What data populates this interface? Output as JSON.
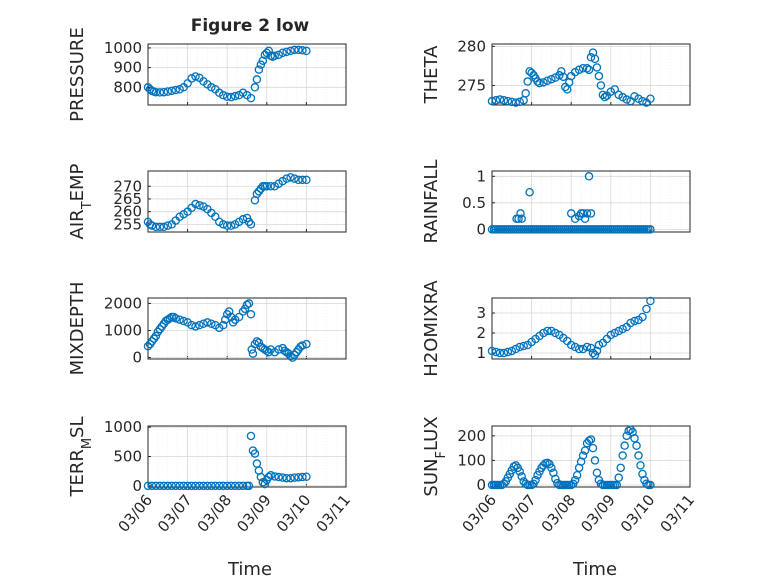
{
  "figure": {
    "title": "Figure 2 low",
    "xlabel": "Time",
    "marker_color": "#0072bd"
  },
  "chart_data": [
    {
      "type": "scatter",
      "ylabel": "PRESSURE",
      "xlim": [
        0,
        5
      ],
      "ylim": [
        710,
        1020
      ],
      "yticks": [
        800,
        900,
        1000
      ],
      "ytick_labels": [
        "800",
        "900",
        "1000"
      ],
      "xticks": [
        0,
        1,
        2,
        3,
        4,
        5
      ],
      "xtick_labels": [],
      "x": [
        0,
        0.05,
        0.1,
        0.15,
        0.2,
        0.3,
        0.4,
        0.5,
        0.6,
        0.7,
        0.8,
        0.9,
        1.0,
        1.1,
        1.2,
        1.3,
        1.4,
        1.5,
        1.6,
        1.7,
        1.8,
        1.9,
        2.0,
        2.1,
        2.2,
        2.3,
        2.4,
        2.5,
        2.6,
        2.7,
        2.75,
        2.8,
        2.85,
        2.9,
        2.95,
        3.0,
        3.05,
        3.1,
        3.15,
        3.2,
        3.3,
        3.4,
        3.5,
        3.6,
        3.7,
        3.8,
        3.9,
        4.0
      ],
      "y": [
        800,
        790,
        782,
        778,
        775,
        774,
        775,
        778,
        782,
        786,
        790,
        800,
        820,
        845,
        855,
        848,
        830,
        815,
        800,
        790,
        772,
        760,
        752,
        750,
        755,
        760,
        772,
        760,
        745,
        800,
        840,
        890,
        915,
        935,
        965,
        975,
        985,
        960,
        955,
        960,
        965,
        975,
        980,
        985,
        990,
        990,
        988,
        985
      ]
    },
    {
      "type": "scatter",
      "ylabel": "THETA",
      "xlim": [
        0,
        5
      ],
      "ylim": [
        272.5,
        280.3
      ],
      "yticks": [
        275,
        280
      ],
      "ytick_labels": [
        "275",
        "280"
      ],
      "xticks": [
        0,
        1,
        2,
        3,
        4,
        5
      ],
      "xtick_labels": [],
      "x": [
        0,
        0.1,
        0.2,
        0.3,
        0.4,
        0.5,
        0.6,
        0.7,
        0.8,
        0.85,
        0.9,
        0.95,
        1.0,
        1.05,
        1.1,
        1.15,
        1.2,
        1.3,
        1.4,
        1.5,
        1.6,
        1.7,
        1.75,
        1.8,
        1.85,
        1.9,
        1.95,
        2.0,
        2.1,
        2.2,
        2.3,
        2.4,
        2.45,
        2.5,
        2.55,
        2.6,
        2.65,
        2.7,
        2.75,
        2.8,
        2.85,
        2.9,
        3.0,
        3.1,
        3.2,
        3.3,
        3.4,
        3.5,
        3.6,
        3.7,
        3.8,
        3.9,
        4.0
      ],
      "y": [
        273.0,
        273.1,
        273.2,
        273.1,
        273.0,
        272.9,
        272.8,
        272.9,
        273.1,
        274.0,
        275.5,
        276.8,
        276.6,
        276.3,
        275.9,
        275.5,
        275.3,
        275.4,
        275.6,
        275.8,
        276.0,
        276.3,
        276.8,
        276.1,
        274.8,
        274.5,
        275.4,
        276.2,
        276.7,
        277.0,
        277.2,
        277.2,
        277.0,
        278.6,
        279.2,
        278.4,
        277.3,
        276.2,
        275.0,
        273.8,
        273.5,
        273.7,
        274.2,
        274.5,
        273.8,
        273.5,
        273.2,
        273.0,
        273.6,
        273.3,
        273.0,
        272.8,
        273.3
      ]
    },
    {
      "type": "scatter",
      "ylabel": "AIR_TEMP",
      "xlim": [
        0,
        5
      ],
      "ylim": [
        252,
        276
      ],
      "yticks": [
        255,
        260,
        265,
        270
      ],
      "ytick_labels": [
        "255",
        "260",
        "265",
        "270"
      ],
      "xticks": [
        0,
        1,
        2,
        3,
        4,
        5
      ],
      "xtick_labels": [],
      "x": [
        0,
        0.05,
        0.1,
        0.2,
        0.3,
        0.4,
        0.5,
        0.6,
        0.7,
        0.8,
        0.9,
        1.0,
        1.1,
        1.2,
        1.3,
        1.4,
        1.5,
        1.6,
        1.7,
        1.8,
        1.9,
        2.0,
        2.1,
        2.2,
        2.3,
        2.4,
        2.5,
        2.55,
        2.6,
        2.7,
        2.75,
        2.8,
        2.85,
        2.9,
        2.95,
        3.0,
        3.1,
        3.2,
        3.3,
        3.4,
        3.5,
        3.6,
        3.7,
        3.8,
        3.9,
        4.0
      ],
      "y": [
        256,
        255,
        254.5,
        254,
        254,
        254,
        254.5,
        255,
        256.5,
        258,
        259,
        260,
        261.5,
        263,
        262.5,
        262,
        261,
        259.5,
        258,
        256,
        255,
        254.5,
        254.5,
        255,
        256,
        257,
        257.5,
        256,
        255,
        264.5,
        267,
        268,
        269,
        270,
        270,
        270,
        270,
        270,
        271,
        272,
        273,
        273.5,
        273,
        272.5,
        272.5,
        272.5
      ]
    },
    {
      "type": "scatter",
      "ylabel": "RAINFALL",
      "xlim": [
        0,
        5
      ],
      "ylim": [
        -0.05,
        1.1
      ],
      "yticks": [
        0,
        0.5,
        1
      ],
      "ytick_labels": [
        "0",
        "0.5",
        "1"
      ],
      "xticks": [
        0,
        1,
        2,
        3,
        4,
        5
      ],
      "xtick_labels": [],
      "x": [
        0,
        0.05,
        0.1,
        0.15,
        0.2,
        0.25,
        0.3,
        0.35,
        0.4,
        0.45,
        0.5,
        0.55,
        0.6,
        0.65,
        0.7,
        0.75,
        0.8,
        0.85,
        0.9,
        0.95,
        1.0,
        1.05,
        1.1,
        1.15,
        1.2,
        1.25,
        1.3,
        1.35,
        1.4,
        1.45,
        1.5,
        1.55,
        1.6,
        1.65,
        1.7,
        1.75,
        1.8,
        1.85,
        1.9,
        1.95,
        2.0,
        2.05,
        2.1,
        2.15,
        2.2,
        2.25,
        2.3,
        2.35,
        2.4,
        2.45,
        2.5,
        2.55,
        2.6,
        2.65,
        2.7,
        2.75,
        2.8,
        2.85,
        2.9,
        2.95,
        3.0,
        3.05,
        3.1,
        3.15,
        3.2,
        3.25,
        3.3,
        3.35,
        3.4,
        3.45,
        3.5,
        3.55,
        3.6,
        3.65,
        3.7,
        3.75,
        3.8,
        3.85,
        3.9,
        3.95,
        4.0,
        0.62,
        0.67,
        0.72,
        0.75,
        0.95,
        2.0,
        2.1,
        2.2,
        2.25,
        2.3,
        2.35,
        2.4,
        2.45,
        2.5
      ],
      "y": [
        0,
        0,
        0,
        0,
        0,
        0,
        0,
        0,
        0,
        0,
        0,
        0,
        0,
        0,
        0,
        0,
        0,
        0,
        0,
        0,
        0,
        0,
        0,
        0,
        0,
        0,
        0,
        0,
        0,
        0,
        0,
        0,
        0,
        0,
        0,
        0,
        0,
        0,
        0,
        0,
        0,
        0,
        0,
        0,
        0,
        0,
        0,
        0,
        0,
        0,
        0,
        0,
        0,
        0,
        0,
        0,
        0,
        0,
        0,
        0,
        0,
        0,
        0,
        0,
        0,
        0,
        0,
        0,
        0,
        0,
        0,
        0,
        0,
        0,
        0,
        0,
        0,
        0,
        0,
        0,
        0,
        0.2,
        0.2,
        0.3,
        0.2,
        0.7,
        0.3,
        0.2,
        0.25,
        0.3,
        0.3,
        0.2,
        0.3,
        1.0,
        0.3
      ]
    },
    {
      "type": "scatter",
      "ylabel": "MIXDEPTH",
      "xlim": [
        0,
        5
      ],
      "ylim": [
        -50,
        2200
      ],
      "yticks": [
        0,
        1000,
        2000
      ],
      "ytick_labels": [
        "0",
        "1000",
        "2000"
      ],
      "xticks": [
        0,
        1,
        2,
        3,
        4,
        5
      ],
      "xtick_labels": [],
      "x": [
        0,
        0.05,
        0.1,
        0.15,
        0.2,
        0.25,
        0.3,
        0.35,
        0.4,
        0.45,
        0.5,
        0.55,
        0.6,
        0.65,
        0.7,
        0.8,
        0.9,
        1.0,
        1.1,
        1.2,
        1.3,
        1.4,
        1.5,
        1.6,
        1.7,
        1.8,
        1.9,
        1.95,
        2.0,
        2.05,
        2.1,
        2.15,
        2.2,
        2.3,
        2.4,
        2.45,
        2.5,
        2.55,
        2.6,
        2.62,
        2.65,
        2.7,
        2.75,
        2.8,
        2.85,
        2.9,
        2.95,
        3.0,
        3.05,
        3.1,
        3.2,
        3.3,
        3.4,
        3.45,
        3.5,
        3.55,
        3.6,
        3.65,
        3.7,
        3.75,
        3.8,
        3.85,
        3.9,
        4.0
      ],
      "y": [
        420,
        500,
        600,
        700,
        800,
        950,
        1050,
        1150,
        1250,
        1350,
        1400,
        1450,
        1500,
        1500,
        1450,
        1400,
        1350,
        1300,
        1200,
        1150,
        1200,
        1250,
        1300,
        1250,
        1200,
        1100,
        1200,
        1400,
        1600,
        1700,
        1500,
        1300,
        1400,
        1500,
        1700,
        1800,
        1950,
        2000,
        1600,
        300,
        150,
        500,
        600,
        550,
        400,
        350,
        300,
        250,
        200,
        300,
        200,
        300,
        350,
        250,
        200,
        150,
        50,
        0,
        100,
        200,
        300,
        400,
        450,
        500
      ]
    },
    {
      "type": "scatter",
      "ylabel": "H2OMIXRA",
      "xlim": [
        0,
        5
      ],
      "ylim": [
        0.7,
        3.75
      ],
      "yticks": [
        1,
        2,
        3
      ],
      "ytick_labels": [
        "1",
        "2",
        "3"
      ],
      "xticks": [
        0,
        1,
        2,
        3,
        4,
        5
      ],
      "xtick_labels": [],
      "x": [
        0,
        0.1,
        0.2,
        0.3,
        0.4,
        0.5,
        0.6,
        0.7,
        0.8,
        0.9,
        1.0,
        1.1,
        1.2,
        1.3,
        1.4,
        1.5,
        1.6,
        1.7,
        1.8,
        1.9,
        2.0,
        2.1,
        2.2,
        2.3,
        2.4,
        2.5,
        2.55,
        2.6,
        2.65,
        2.7,
        2.8,
        2.9,
        3.0,
        3.1,
        3.2,
        3.3,
        3.4,
        3.5,
        3.6,
        3.7,
        3.8,
        3.9,
        4.0
      ],
      "y": [
        1.1,
        1.05,
        1.0,
        1.0,
        1.05,
        1.1,
        1.2,
        1.3,
        1.35,
        1.4,
        1.55,
        1.7,
        1.85,
        2.0,
        2.1,
        2.1,
        2.0,
        1.9,
        1.75,
        1.6,
        1.4,
        1.3,
        1.2,
        1.2,
        1.3,
        1.25,
        1.0,
        0.9,
        1.1,
        1.4,
        1.5,
        1.7,
        1.9,
        2.0,
        2.1,
        2.2,
        2.3,
        2.5,
        2.6,
        2.65,
        2.8,
        3.2,
        3.6
      ]
    },
    {
      "type": "scatter",
      "ylabel": "TERR_MSL",
      "xlim": [
        0,
        5
      ],
      "ylim": [
        -20,
        1020
      ],
      "yticks": [
        0,
        500,
        1000
      ],
      "ytick_labels": [
        "0",
        "500",
        "1000"
      ],
      "xticks": [
        0,
        1,
        2,
        3,
        4,
        5
      ],
      "xtick_labels": [
        "03/06",
        "03/07",
        "03/08",
        "03/09",
        "03/10",
        "03/11"
      ],
      "x": [
        0,
        0.1,
        0.2,
        0.3,
        0.4,
        0.5,
        0.6,
        0.7,
        0.8,
        0.9,
        1.0,
        1.1,
        1.2,
        1.3,
        1.4,
        1.5,
        1.6,
        1.7,
        1.8,
        1.9,
        2.0,
        2.1,
        2.2,
        2.3,
        2.4,
        2.5,
        2.55,
        2.6,
        2.65,
        2.7,
        2.75,
        2.8,
        2.85,
        2.9,
        2.95,
        3.0,
        3.05,
        3.1,
        3.2,
        3.3,
        3.4,
        3.5,
        3.6,
        3.7,
        3.8,
        3.9,
        4.0
      ],
      "y": [
        0,
        0,
        0,
        0,
        0,
        0,
        0,
        0,
        0,
        0,
        0,
        0,
        0,
        0,
        0,
        0,
        0,
        0,
        0,
        0,
        0,
        0,
        0,
        0,
        0,
        0,
        0,
        850,
        600,
        550,
        380,
        260,
        150,
        60,
        30,
        100,
        150,
        180,
        160,
        150,
        140,
        130,
        130,
        140,
        145,
        150,
        155
      ]
    },
    {
      "type": "scatter",
      "ylabel": "SUN_FLUX",
      "xlim": [
        0,
        5
      ],
      "ylim": [
        -8,
        240
      ],
      "yticks": [
        0,
        100,
        200
      ],
      "ytick_labels": [
        "0",
        "100",
        "200"
      ],
      "xticks": [
        0,
        1,
        2,
        3,
        4,
        5
      ],
      "xtick_labels": [
        "03/06",
        "03/07",
        "03/08",
        "03/09",
        "03/10",
        "03/11"
      ],
      "x": [
        0,
        0.05,
        0.1,
        0.15,
        0.2,
        0.25,
        0.3,
        0.35,
        0.4,
        0.45,
        0.5,
        0.55,
        0.6,
        0.65,
        0.7,
        0.75,
        0.8,
        0.85,
        0.9,
        0.95,
        1.0,
        1.05,
        1.1,
        1.15,
        1.2,
        1.25,
        1.3,
        1.35,
        1.4,
        1.45,
        1.5,
        1.55,
        1.6,
        1.65,
        1.7,
        1.75,
        1.8,
        1.85,
        1.9,
        1.95,
        2.0,
        2.05,
        2.1,
        2.15,
        2.2,
        2.25,
        2.3,
        2.35,
        2.4,
        2.45,
        2.5,
        2.55,
        2.6,
        2.65,
        2.7,
        2.75,
        2.8,
        2.85,
        2.9,
        2.95,
        3.0,
        3.05,
        3.1,
        3.15,
        3.2,
        3.25,
        3.3,
        3.35,
        3.4,
        3.45,
        3.5,
        3.55,
        3.6,
        3.65,
        3.7,
        3.75,
        3.8,
        3.85,
        3.9,
        3.95,
        4.0
      ],
      "y": [
        0,
        0,
        0,
        0,
        0,
        0,
        5,
        15,
        30,
        45,
        60,
        75,
        80,
        70,
        55,
        35,
        15,
        5,
        0,
        0,
        0,
        5,
        20,
        40,
        55,
        70,
        80,
        88,
        90,
        85,
        70,
        50,
        25,
        8,
        0,
        0,
        0,
        0,
        0,
        0,
        0,
        5,
        20,
        40,
        70,
        95,
        120,
        140,
        170,
        180,
        185,
        150,
        100,
        50,
        20,
        5,
        0,
        0,
        0,
        0,
        0,
        0,
        0,
        0,
        30,
        70,
        120,
        160,
        200,
        220,
        225,
        215,
        190,
        160,
        120,
        80,
        45,
        20,
        5,
        0,
        0
      ]
    }
  ]
}
